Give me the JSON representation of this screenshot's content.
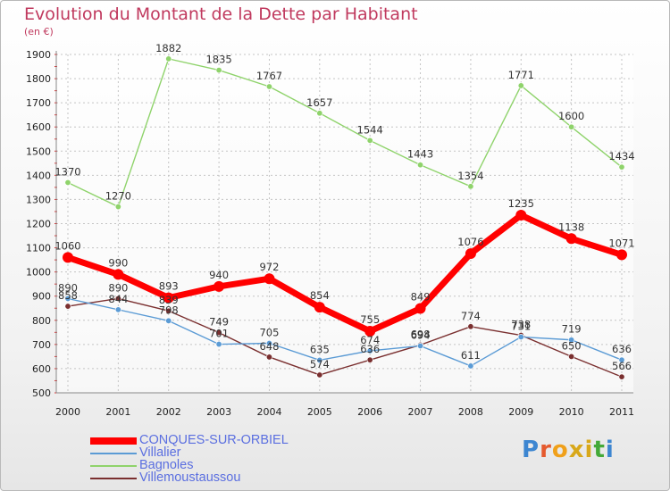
{
  "title": "Evolution du Montant de la Dette par Habitant",
  "subtitle": "(en €)",
  "brand": {
    "letters": [
      "P",
      "r",
      "o",
      "x",
      "i",
      "t",
      "i"
    ],
    "colors": [
      "#3d86d1",
      "#e55a2e",
      "#f0a01a",
      "#d8a81a",
      "#d8a81a",
      "#44a938",
      "#3d86d1"
    ]
  },
  "chart_data": {
    "type": "line",
    "categories": [
      "2000",
      "2001",
      "2002",
      "2003",
      "2004",
      "2005",
      "2006",
      "2007",
      "2008",
      "2009",
      "2010",
      "2011"
    ],
    "ylim": [
      500,
      1900
    ],
    "yticks": [
      500,
      600,
      700,
      800,
      900,
      1000,
      1100,
      1200,
      1300,
      1400,
      1500,
      1600,
      1700,
      1800,
      1900
    ],
    "grid": true,
    "legend_position": "bottom-left",
    "series": [
      {
        "name": "CONQUES-SUR-ORBIEL",
        "color": "#ff0000",
        "values": [
          1060,
          990,
          893,
          940,
          972,
          854,
          755,
          849,
          1076,
          1235,
          1138,
          1071
        ]
      },
      {
        "name": "Villalier",
        "color": "#5b9bd5",
        "values": [
          890,
          844,
          798,
          701,
          705,
          635,
          674,
          694,
          611,
          731,
          719,
          636
        ]
      },
      {
        "name": "Bagnoles",
        "color": "#8fd36b",
        "values": [
          1370,
          1270,
          1882,
          1835,
          1767,
          1657,
          1544,
          1443,
          1354,
          1771,
          1600,
          1434
        ]
      },
      {
        "name": "Villemoustaussou",
        "color": "#7a2f2f",
        "values": [
          858,
          890,
          839,
          749,
          648,
          574,
          636,
          698,
          774,
          738,
          650,
          566
        ]
      }
    ]
  }
}
